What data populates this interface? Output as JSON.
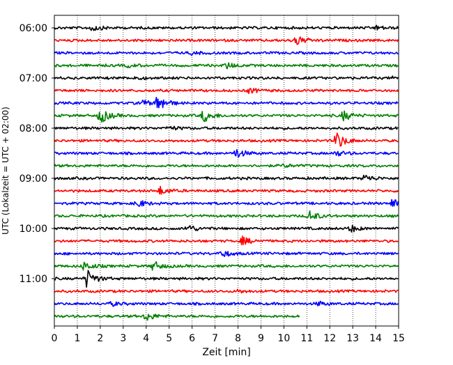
{
  "chart_data": {
    "type": "line",
    "title": "",
    "xlabel": "Zeit  [min]",
    "ylabel": "UTC (Lokalzeit = UTC + 02:00)",
    "xlim": [
      0,
      15
    ],
    "x_ticks": [
      "0",
      "1",
      "2",
      "3",
      "4",
      "5",
      "6",
      "7",
      "8",
      "9",
      "10",
      "11",
      "12",
      "13",
      "14",
      "15"
    ],
    "y_ticks": [
      "06:00",
      "07:00",
      "08:00",
      "09:00",
      "10:00",
      "11:00"
    ],
    "grid_x": true,
    "grid_y": false,
    "trace_colors": [
      "#000000",
      "#ff0000",
      "#0000ff",
      "#008000"
    ],
    "series": [
      {
        "start": "06:00",
        "end_minute": 15,
        "events": [
          {
            "t": 1.6,
            "amp": 0.35
          },
          {
            "t": 14.0,
            "amp": 0.2
          }
        ]
      },
      {
        "start": "06:15",
        "end_minute": 15,
        "events": [
          {
            "t": 10.5,
            "amp": 0.55
          }
        ]
      },
      {
        "start": "06:30",
        "end_minute": 15,
        "events": [
          {
            "t": 6.0,
            "amp": 0.15
          }
        ]
      },
      {
        "start": "06:45",
        "end_minute": 15,
        "events": [
          {
            "t": 7.5,
            "amp": 0.3
          },
          {
            "t": 3.2,
            "amp": 0.15
          }
        ]
      },
      {
        "start": "07:00",
        "end_minute": 15,
        "events": [
          {
            "t": 3.5,
            "amp": 0.15
          },
          {
            "t": 14.8,
            "amp": 0.15
          }
        ]
      },
      {
        "start": "07:15",
        "end_minute": 15,
        "events": [
          {
            "t": 8.5,
            "amp": 0.25
          }
        ]
      },
      {
        "start": "07:30",
        "end_minute": 15,
        "events": [
          {
            "t": 4.5,
            "amp": 0.9
          },
          {
            "t": 3.8,
            "amp": 0.3
          }
        ]
      },
      {
        "start": "07:45",
        "end_minute": 15,
        "events": [
          {
            "t": 2.0,
            "amp": 0.8
          },
          {
            "t": 6.5,
            "amp": 0.65
          },
          {
            "t": 12.6,
            "amp": 0.5
          }
        ]
      },
      {
        "start": "08:00",
        "end_minute": 15,
        "events": [
          {
            "t": 5.0,
            "amp": 0.2
          }
        ]
      },
      {
        "start": "08:15",
        "end_minute": 15,
        "events": [
          {
            "t": 12.3,
            "amp": 0.9
          }
        ]
      },
      {
        "start": "08:30",
        "end_minute": 15,
        "events": [
          {
            "t": 7.9,
            "amp": 0.5
          },
          {
            "t": 12.3,
            "amp": 0.25
          }
        ]
      },
      {
        "start": "08:45",
        "end_minute": 15,
        "events": [
          {
            "t": 10.0,
            "amp": 0.15
          }
        ]
      },
      {
        "start": "09:00",
        "end_minute": 15,
        "events": [
          {
            "t": 13.5,
            "amp": 0.35
          }
        ]
      },
      {
        "start": "09:15",
        "end_minute": 15,
        "events": [
          {
            "t": 4.6,
            "amp": 0.4
          }
        ]
      },
      {
        "start": "09:30",
        "end_minute": 15,
        "events": [
          {
            "t": 3.6,
            "amp": 0.4
          },
          {
            "t": 14.7,
            "amp": 0.45
          }
        ]
      },
      {
        "start": "09:45",
        "end_minute": 15,
        "events": [
          {
            "t": 11.1,
            "amp": 0.55
          }
        ]
      },
      {
        "start": "10:00",
        "end_minute": 15,
        "events": [
          {
            "t": 5.8,
            "amp": 0.4
          },
          {
            "t": 12.9,
            "amp": 0.35
          }
        ]
      },
      {
        "start": "10:15",
        "end_minute": 15,
        "events": [
          {
            "t": 8.2,
            "amp": 0.4
          }
        ]
      },
      {
        "start": "10:30",
        "end_minute": 15,
        "events": [
          {
            "t": 7.3,
            "amp": 0.35
          }
        ]
      },
      {
        "start": "10:45",
        "end_minute": 15,
        "events": [
          {
            "t": 1.3,
            "amp": 0.45
          },
          {
            "t": 4.3,
            "amp": 0.5
          }
        ]
      },
      {
        "start": "11:00",
        "end_minute": 15,
        "events": [
          {
            "t": 1.4,
            "amp": 0.95
          }
        ]
      },
      {
        "start": "11:15",
        "end_minute": 15,
        "events": [
          {
            "t": 8.0,
            "amp": 0.15
          }
        ]
      },
      {
        "start": "11:30",
        "end_minute": 15,
        "events": [
          {
            "t": 2.5,
            "amp": 0.2
          },
          {
            "t": 11.5,
            "amp": 0.2
          }
        ]
      },
      {
        "start": "11:45",
        "end_minute": 10.7,
        "events": [
          {
            "t": 4.0,
            "amp": 0.45
          }
        ]
      }
    ]
  }
}
